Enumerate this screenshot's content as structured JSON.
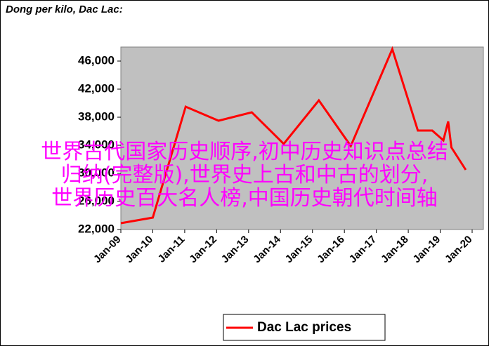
{
  "chart_data": {
    "type": "line",
    "title": "Dong per kilo, Dac Lac:",
    "xlim": [
      2009,
      2020.4
    ],
    "xticks": [
      {
        "value": 2009,
        "label": "Jan-09"
      },
      {
        "value": 2010,
        "label": "Jan-10"
      },
      {
        "value": 2011,
        "label": "Jan-11"
      },
      {
        "value": 2012,
        "label": "Jan-12"
      },
      {
        "value": 2013,
        "label": "Jan-13"
      },
      {
        "value": 2014,
        "label": "Jan-14"
      },
      {
        "value": 2015,
        "label": "Jan-15"
      },
      {
        "value": 2016,
        "label": "Jan-16"
      },
      {
        "value": 2017,
        "label": "Jan-17"
      },
      {
        "value": 2018,
        "label": "Jan-18"
      },
      {
        "value": 2019,
        "label": "Jan-19"
      },
      {
        "value": 2020,
        "label": "Jan-20"
      }
    ],
    "ylim": [
      22000,
      48000
    ],
    "yticks": [
      {
        "value": 22000,
        "label": "22,000"
      },
      {
        "value": 26000,
        "label": "26,000"
      },
      {
        "value": 30000,
        "label": "30,000"
      },
      {
        "value": 34000,
        "label": "34,000"
      },
      {
        "value": 38000,
        "label": "38,000"
      },
      {
        "value": 42000,
        "label": "42,000"
      },
      {
        "value": 46000,
        "label": "46,000"
      }
    ],
    "x": [
      2009.0,
      2010.0,
      2011.03,
      2012.06,
      2013.1,
      2014.1,
      2015.2,
      2016.2,
      2017.5,
      2018.3,
      2018.75,
      2019.1,
      2019.25,
      2019.35,
      2019.8
    ],
    "series": [
      {
        "name": "Dac Lac prices",
        "color": "#ff0000",
        "values": [
          22900,
          23700,
          39500,
          37500,
          38700,
          34200,
          40400,
          33900,
          47700,
          36100,
          36100,
          34700,
          37400,
          33700,
          30500
        ]
      }
    ],
    "legend": "bottom"
  },
  "overlay": [
    "世界古代国家历史顺序,初中历史知识点总结",
    "归纳(完整版),世界史上古和中古的划分,",
    "世界历史百大名人榜,中国历史朝代时间轴"
  ]
}
